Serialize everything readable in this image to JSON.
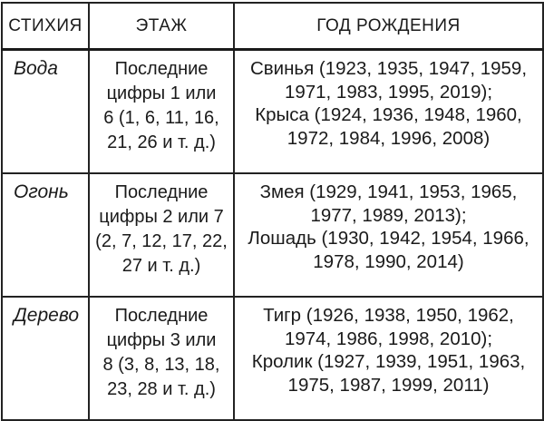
{
  "page": {
    "background_color": "#ffffff",
    "text_color": "#1a1a1a",
    "border_color": "#222222"
  },
  "table": {
    "headers": [
      "СТИХИЯ",
      "ЭТАЖ",
      "ГОД РОЖДЕНИЯ"
    ],
    "rows": [
      {
        "element": "Вода",
        "floor": "Последние\nцифры 1 или\n6 (1, 6, 11, 16,\n21, 26 и т. д.)",
        "birth_years": "Свинья (1923, 1935, 1947, 1959,\n1971, 1983, 1995, 2019);\nКрыса (1924, 1936, 1948, 1960,\n1972, 1984, 1996, 2008)"
      },
      {
        "element": "Огонь",
        "floor": "Последние\nцифры 2 или 7\n(2, 7, 12, 17, 22,\n27 и т. д.)",
        "birth_years": "Змея (1929, 1941, 1953, 1965,\n1977, 1989, 2013);\nЛошадь (1930, 1942, 1954, 1966,\n1978, 1990, 2014)"
      },
      {
        "element": "Дерево",
        "floor": "Последние\nцифры 3 или\n8 (3, 8, 13, 18,\n23, 28 и т. д.)",
        "birth_years": "Тигр (1926, 1938, 1950, 1962,\n1974, 1986, 1998, 2010);\nКролик (1927, 1939, 1951, 1963,\n1975, 1987, 1999, 2011)"
      }
    ]
  }
}
